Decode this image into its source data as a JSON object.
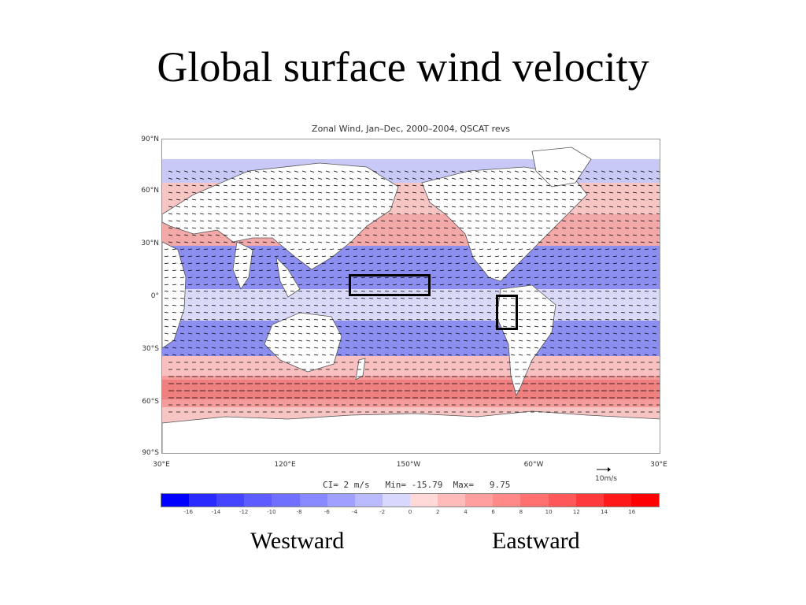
{
  "slide": {
    "title": "Global surface wind velocity"
  },
  "figure": {
    "title": "Zonal Wind, Jan–Dec, 2000–2004, QSCAT revs",
    "lat_labels": [
      "90°N",
      "60°N",
      "30°N",
      "0°",
      "30°S",
      "60°S",
      "90°S"
    ],
    "lon_labels": [
      "30°E",
      "120°E",
      "150°W",
      "60°W",
      "30°E"
    ],
    "contour_info": "CI= 2 m/s   Min= -15.79  Max=   9.75",
    "reference_vector_label": "10m/s",
    "colorbar": {
      "ticks": [
        "-16",
        "-14",
        "-12",
        "-10",
        "-8",
        "-6",
        "-4",
        "-2",
        "0",
        "2",
        "4",
        "6",
        "8",
        "10",
        "12",
        "14",
        "16"
      ],
      "colors": [
        "#0000ff",
        "#2a2aff",
        "#4545ff",
        "#5d5dff",
        "#7070ff",
        "#8888ff",
        "#a0a0ff",
        "#babaff",
        "#d8d8ff",
        "#ffd8d8",
        "#ffbaba",
        "#ffa0a0",
        "#ff8888",
        "#ff7070",
        "#ff5858",
        "#ff3a3a",
        "#ff1a1a",
        "#ff0000"
      ]
    },
    "colors": {
      "westward": "#8d8ff0",
      "eastward": "#f59b9b",
      "land": "#ffffff",
      "arrow": "#000000"
    }
  },
  "legend": {
    "westward_label": "Westward",
    "eastward_label": "Eastward"
  }
}
